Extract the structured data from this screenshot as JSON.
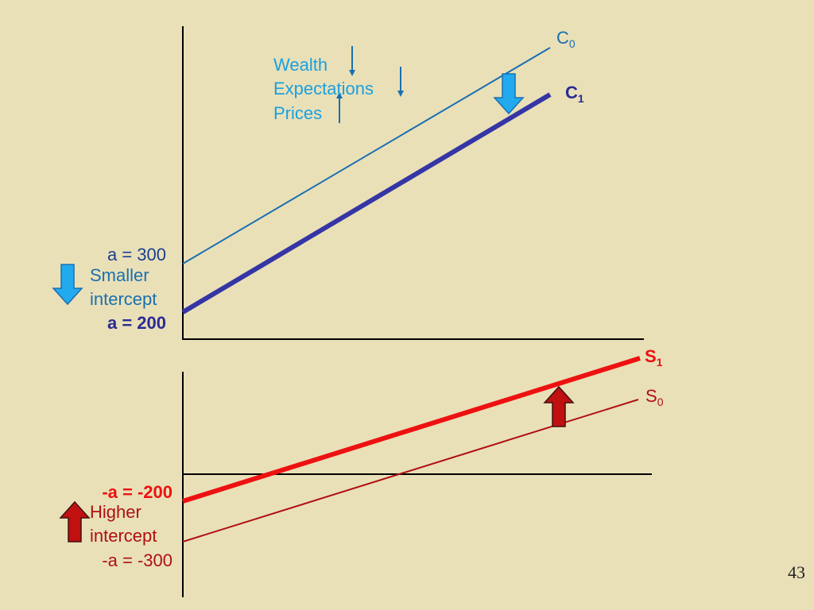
{
  "curves": {
    "c0": {
      "text": "C",
      "sub": "0"
    },
    "c1": {
      "text": "C",
      "sub": "1"
    },
    "s1": {
      "text": "S",
      "sub": "1"
    },
    "s0": {
      "text": "S",
      "sub": "0"
    }
  },
  "factors": [
    "Wealth",
    "Expectations",
    "Prices"
  ],
  "consumption_intercept": {
    "old": "a = 300",
    "note": [
      "Smaller",
      "intercept"
    ],
    "new": "a = 200"
  },
  "saving_intercept": {
    "new": "-a = -200",
    "note": [
      "Higher",
      "intercept"
    ],
    "old": "-a = -300"
  },
  "page_number": "43"
}
